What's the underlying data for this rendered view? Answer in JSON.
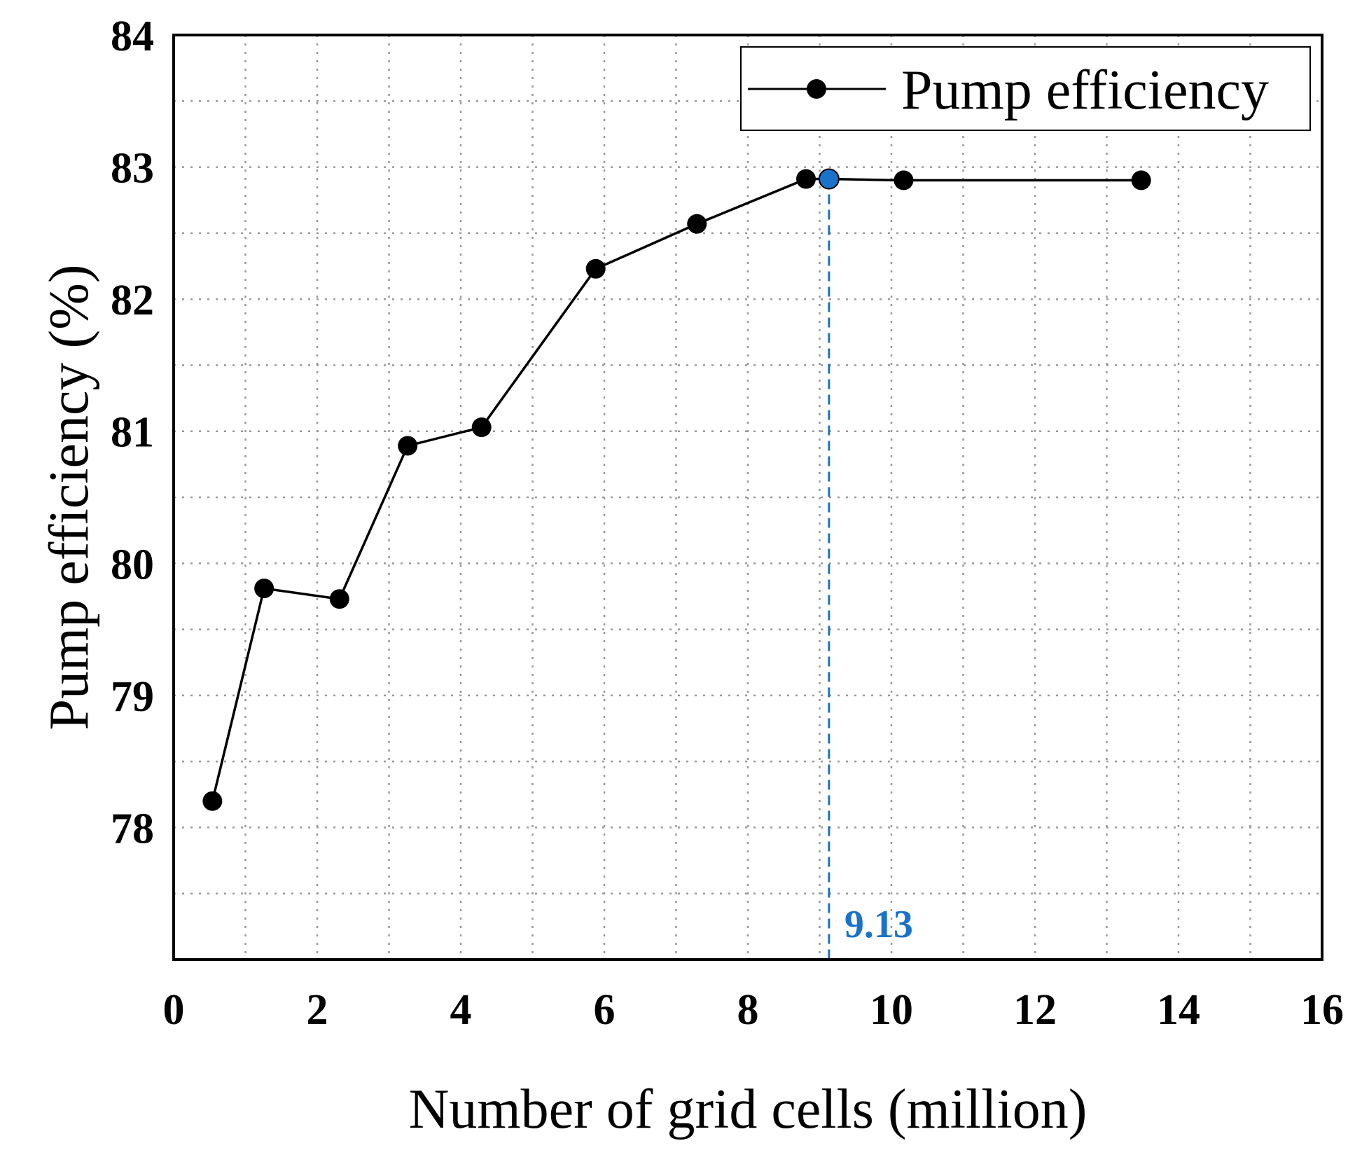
{
  "chart_data": {
    "type": "line",
    "title": "",
    "xlabel": "Number of grid cells (million)",
    "ylabel": "Pump efficiency (%)",
    "xlim": [
      0,
      16
    ],
    "ylim": [
      77,
      84
    ],
    "xticks": [
      "0",
      "2",
      "4",
      "6",
      "8",
      "10",
      "12",
      "14",
      "16"
    ],
    "yticks": [
      "78",
      "79",
      "80",
      "81",
      "82",
      "83",
      "84"
    ],
    "grid": true,
    "legend": {
      "placement": "top-right",
      "entries": [
        "Pump efficiency"
      ]
    },
    "series": [
      {
        "name": "Pump efficiency",
        "color": "#000000",
        "x": [
          0.54,
          1.26,
          2.31,
          3.26,
          4.29,
          5.88,
          7.29,
          8.81,
          9.13,
          10.17,
          13.48
        ],
        "y": [
          78.2,
          79.81,
          79.73,
          80.89,
          81.03,
          82.23,
          82.57,
          82.91,
          82.91,
          82.9,
          82.9
        ]
      }
    ],
    "highlight": {
      "x": 9.13,
      "y": 82.91,
      "label": "9.13",
      "color": "#1a73c8"
    }
  }
}
